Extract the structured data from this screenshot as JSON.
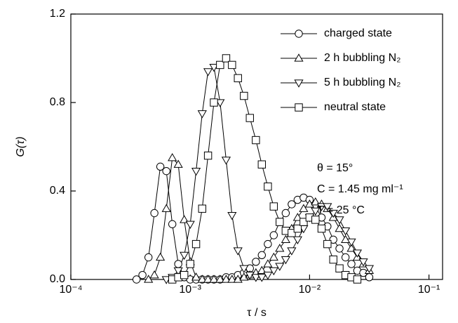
{
  "chart_data": {
    "type": "line",
    "x_label": "τ / s",
    "y_label": "G(τ)",
    "xscale": "log",
    "xlim": [
      0.0001,
      0.13
    ],
    "ylim": [
      0,
      1.2
    ],
    "xticks": [
      {
        "value": 0.0001,
        "label": "10⁻⁴"
      },
      {
        "value": 0.001,
        "label": "10⁻³"
      },
      {
        "value": 0.01,
        "label": "10⁻²"
      },
      {
        "value": 0.1,
        "label": "10⁻¹"
      }
    ],
    "yticks": [
      {
        "value": 0,
        "label": "0.0"
      },
      0.4,
      0.8,
      1.2
    ],
    "legend": "upper right",
    "annotations": [
      "θ = 15°",
      "C = 1.45 mg ml⁻¹",
      "T = 25 °C"
    ],
    "x": [
      0.000355,
      0.000398,
      0.000447,
      0.000501,
      0.000562,
      0.000631,
      0.000708,
      0.000794,
      0.000891,
      0.001,
      0.00112,
      0.00126,
      0.00141,
      0.00158,
      0.00178,
      0.002,
      0.00224,
      0.00251,
      0.00282,
      0.00316,
      0.00355,
      0.00398,
      0.00447,
      0.00501,
      0.00562,
      0.00631,
      0.00708,
      0.00794,
      0.00891,
      0.01,
      0.0112,
      0.0126,
      0.0141,
      0.0158,
      0.0178,
      0.02,
      0.0224,
      0.0251,
      0.0282,
      0.0316
    ],
    "series": [
      {
        "name": "charged state",
        "marker": "circle",
        "color": "#000000",
        "values": [
          0,
          0.02,
          0.1,
          0.3,
          0.51,
          0.49,
          0.25,
          0.07,
          0.01,
          0,
          0,
          0,
          0,
          0,
          0,
          0.01,
          0.01,
          0.02,
          0.03,
          0.05,
          0.08,
          0.11,
          0.16,
          0.2,
          0.26,
          0.3,
          0.34,
          0.36,
          0.37,
          0.36,
          0.33,
          0.28,
          0.24,
          0.18,
          0.14,
          0.1,
          0.07,
          0.04,
          0.03,
          0.01
        ]
      },
      {
        "name": "2 h bubbling N₂",
        "marker": "triangle-up",
        "color": "#000000",
        "values": [
          null,
          null,
          0,
          0.02,
          0.1,
          0.32,
          0.55,
          0.52,
          0.27,
          0.08,
          0.01,
          0,
          0,
          0,
          0,
          0,
          0,
          0,
          0.01,
          0.02,
          0.03,
          0.04,
          0.07,
          0.1,
          0.14,
          0.18,
          0.23,
          0.28,
          0.32,
          0.34,
          0.35,
          0.34,
          0.32,
          0.28,
          0.23,
          0.18,
          0.14,
          0.1,
          0.07,
          0.04
        ]
      },
      {
        "name": "5 h bubbling N₂",
        "marker": "triangle-down",
        "color": "#000000",
        "values": [
          null,
          null,
          null,
          null,
          null,
          0,
          0.01,
          0.04,
          0.11,
          0.25,
          0.49,
          0.75,
          0.94,
          0.96,
          0.8,
          0.54,
          0.29,
          0.13,
          0.05,
          0.02,
          0.01,
          0.01,
          0.02,
          0.04,
          0.06,
          0.09,
          0.13,
          0.18,
          0.23,
          0.28,
          0.31,
          0.33,
          0.33,
          0.3,
          0.27,
          0.22,
          0.17,
          0.12,
          0.08,
          0.05
        ]
      },
      {
        "name": "neutral state",
        "marker": "square",
        "color": "#000000",
        "values": [
          null,
          null,
          null,
          null,
          null,
          null,
          0,
          0.01,
          0.02,
          0.07,
          0.16,
          0.32,
          0.56,
          0.8,
          0.97,
          1.0,
          0.97,
          0.91,
          0.83,
          0.73,
          0.63,
          0.52,
          0.42,
          0.33,
          0.26,
          0.22,
          0.21,
          0.23,
          0.26,
          0.28,
          0.27,
          0.23,
          0.16,
          0.09,
          0.05,
          0.02,
          0.01,
          0,
          null,
          null
        ]
      }
    ]
  }
}
